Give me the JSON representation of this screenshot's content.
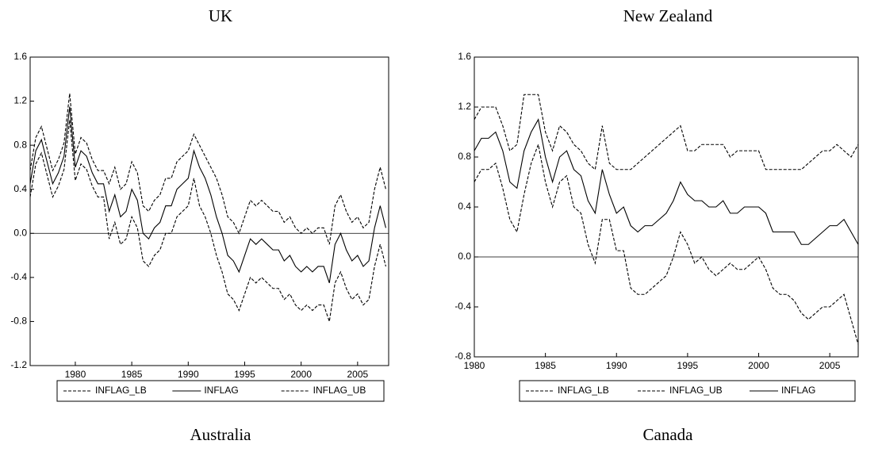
{
  "chart_data": [
    {
      "type": "line",
      "title": "UK",
      "x": [
        1976,
        1976.5,
        1977,
        1977.5,
        1978,
        1978.5,
        1979,
        1979.5,
        1980,
        1980.5,
        1981,
        1981.5,
        1982,
        1982.5,
        1983,
        1983.5,
        1984,
        1984.5,
        1985,
        1985.5,
        1986,
        1986.5,
        1987,
        1987.5,
        1988,
        1988.5,
        1989,
        1989.5,
        1990,
        1990.5,
        1991,
        1991.5,
        1992,
        1992.5,
        1993,
        1993.5,
        1994,
        1994.5,
        1995,
        1995.5,
        1996,
        1996.5,
        1997,
        1997.5,
        1998,
        1998.5,
        1999,
        1999.5,
        2000,
        2000.5,
        2001,
        2001.5,
        2002,
        2002.5,
        2003,
        2003.5,
        2004,
        2004.5,
        2005,
        2005.5,
        2006,
        2006.5,
        2007,
        2007.5
      ],
      "series": [
        {
          "name": "INFLAG_LB",
          "color": "#000000",
          "style": "dashed",
          "values": [
            0.33,
            0.63,
            0.73,
            0.53,
            0.33,
            0.43,
            0.58,
            1.03,
            0.48,
            0.63,
            0.58,
            0.43,
            0.33,
            0.33,
            -0.05,
            0.1,
            -0.1,
            -0.05,
            0.15,
            0.05,
            -0.25,
            -0.3,
            -0.2,
            -0.15,
            0.0,
            0.0,
            0.15,
            0.2,
            0.25,
            0.5,
            0.25,
            0.15,
            0.0,
            -0.2,
            -0.35,
            -0.55,
            -0.6,
            -0.7,
            -0.55,
            -0.4,
            -0.45,
            -0.4,
            -0.45,
            -0.5,
            -0.5,
            -0.6,
            -0.55,
            -0.65,
            -0.7,
            -0.65,
            -0.7,
            -0.65,
            -0.65,
            -0.8,
            -0.45,
            -0.35,
            -0.5,
            -0.6,
            -0.55,
            -0.65,
            -0.6,
            -0.3,
            -0.1,
            -0.3
          ]
        },
        {
          "name": "INFLAG",
          "color": "#000000",
          "style": "solid",
          "values": [
            0.45,
            0.75,
            0.85,
            0.65,
            0.45,
            0.55,
            0.7,
            1.15,
            0.6,
            0.75,
            0.7,
            0.55,
            0.45,
            0.45,
            0.2,
            0.35,
            0.15,
            0.2,
            0.4,
            0.3,
            0.0,
            -0.05,
            0.05,
            0.1,
            0.25,
            0.25,
            0.4,
            0.45,
            0.5,
            0.75,
            0.6,
            0.5,
            0.35,
            0.15,
            0.0,
            -0.2,
            -0.25,
            -0.35,
            -0.2,
            -0.05,
            -0.1,
            -0.05,
            -0.1,
            -0.15,
            -0.15,
            -0.25,
            -0.2,
            -0.3,
            -0.35,
            -0.3,
            -0.35,
            -0.3,
            -0.3,
            -0.45,
            -0.1,
            0.0,
            -0.15,
            -0.25,
            -0.2,
            -0.3,
            -0.25,
            0.05,
            0.25,
            0.05
          ]
        },
        {
          "name": "INFLAG_UB",
          "color": "#000000",
          "style": "dashed",
          "values": [
            0.57,
            0.87,
            0.97,
            0.77,
            0.57,
            0.67,
            0.82,
            1.27,
            0.72,
            0.87,
            0.82,
            0.67,
            0.57,
            0.57,
            0.45,
            0.6,
            0.4,
            0.45,
            0.65,
            0.55,
            0.25,
            0.2,
            0.3,
            0.35,
            0.5,
            0.5,
            0.65,
            0.7,
            0.75,
            0.9,
            0.8,
            0.7,
            0.6,
            0.5,
            0.35,
            0.15,
            0.1,
            0.0,
            0.15,
            0.3,
            0.25,
            0.3,
            0.25,
            0.2,
            0.2,
            0.1,
            0.15,
            0.05,
            0.0,
            0.05,
            0.0,
            0.05,
            0.05,
            -0.1,
            0.25,
            0.35,
            0.2,
            0.1,
            0.15,
            0.05,
            0.1,
            0.4,
            0.6,
            0.4
          ]
        }
      ],
      "xlim": [
        1976,
        2007.75
      ],
      "xticks": [
        1980,
        1985,
        1990,
        1995,
        2000,
        2005
      ],
      "ylim": [
        -1.2,
        1.6
      ],
      "yticks": [
        -1.2,
        -0.8,
        -0.4,
        {
          "value": 0,
          "label": "0.0"
        },
        0.4,
        0.8,
        1.2,
        1.6
      ],
      "hline": 0,
      "legend": "below"
    },
    {
      "type": "line",
      "title": "New Zealand",
      "x": [
        1980,
        1980.5,
        1981,
        1981.5,
        1982,
        1982.5,
        1983,
        1983.5,
        1984,
        1984.5,
        1985,
        1985.5,
        1986,
        1986.5,
        1987,
        1987.5,
        1988,
        1988.5,
        1989,
        1989.5,
        1990,
        1990.5,
        1991,
        1991.5,
        1992,
        1992.5,
        1993,
        1993.5,
        1994,
        1994.5,
        1995,
        1995.5,
        1996,
        1996.5,
        1997,
        1997.5,
        1998,
        1998.5,
        1999,
        1999.5,
        2000,
        2000.5,
        2001,
        2001.5,
        2002,
        2002.5,
        2003,
        2003.5,
        2004,
        2004.5,
        2005,
        2005.5,
        2006,
        2006.5,
        2007
      ],
      "series": [
        {
          "name": "INFLAG_LB",
          "color": "#000000",
          "style": "dashed",
          "values": [
            0.6,
            0.7,
            0.7,
            0.75,
            0.55,
            0.3,
            0.2,
            0.5,
            0.75,
            0.9,
            0.6,
            0.4,
            0.6,
            0.65,
            0.4,
            0.35,
            0.1,
            -0.05,
            0.3,
            0.3,
            0.05,
            0.05,
            -0.25,
            -0.3,
            -0.3,
            -0.25,
            -0.2,
            -0.15,
            0.0,
            0.2,
            0.1,
            -0.05,
            0.0,
            -0.1,
            -0.15,
            -0.1,
            -0.05,
            -0.1,
            -0.1,
            -0.05,
            0.0,
            -0.1,
            -0.25,
            -0.3,
            -0.3,
            -0.35,
            -0.45,
            -0.5,
            -0.45,
            -0.4,
            -0.4,
            -0.35,
            -0.3,
            -0.5,
            -0.7
          ]
        },
        {
          "name": "INFLAG_UB",
          "color": "#000000",
          "style": "dashed",
          "values": [
            1.1,
            1.2,
            1.2,
            1.2,
            1.05,
            0.85,
            0.9,
            1.3,
            1.3,
            1.3,
            1.0,
            0.85,
            1.05,
            1.0,
            0.9,
            0.85,
            0.75,
            0.7,
            1.05,
            0.75,
            0.7,
            0.7,
            0.7,
            0.75,
            0.8,
            0.85,
            0.9,
            0.95,
            1.0,
            1.05,
            0.85,
            0.85,
            0.9,
            0.9,
            0.9,
            0.9,
            0.8,
            0.85,
            0.85,
            0.85,
            0.85,
            0.7,
            0.7,
            0.7,
            0.7,
            0.7,
            0.7,
            0.75,
            0.8,
            0.85,
            0.85,
            0.9,
            0.85,
            0.8,
            0.9
          ]
        },
        {
          "name": "INFLAG",
          "color": "#000000",
          "style": "solid",
          "values": [
            0.85,
            0.95,
            0.95,
            1.0,
            0.85,
            0.6,
            0.55,
            0.85,
            1.0,
            1.1,
            0.8,
            0.6,
            0.8,
            0.85,
            0.7,
            0.65,
            0.45,
            0.35,
            0.7,
            0.5,
            0.35,
            0.4,
            0.25,
            0.2,
            0.25,
            0.25,
            0.3,
            0.35,
            0.45,
            0.6,
            0.5,
            0.45,
            0.45,
            0.4,
            0.4,
            0.45,
            0.35,
            0.35,
            0.4,
            0.4,
            0.4,
            0.35,
            0.2,
            0.2,
            0.2,
            0.2,
            0.1,
            0.1,
            0.15,
            0.2,
            0.25,
            0.25,
            0.3,
            0.2,
            0.1
          ]
        }
      ],
      "xlim": [
        1980,
        2007
      ],
      "xticks": [
        1980,
        1985,
        1990,
        1995,
        2000,
        2005
      ],
      "ylim": [
        -0.8,
        1.6
      ],
      "yticks": [
        -0.8,
        -0.4,
        {
          "value": 0,
          "label": "0.0"
        },
        0.4,
        0.8,
        1.2,
        1.6
      ],
      "hline": 0,
      "legend": "below"
    }
  ],
  "panel_titles_below": [
    "Australia",
    "Canada"
  ]
}
